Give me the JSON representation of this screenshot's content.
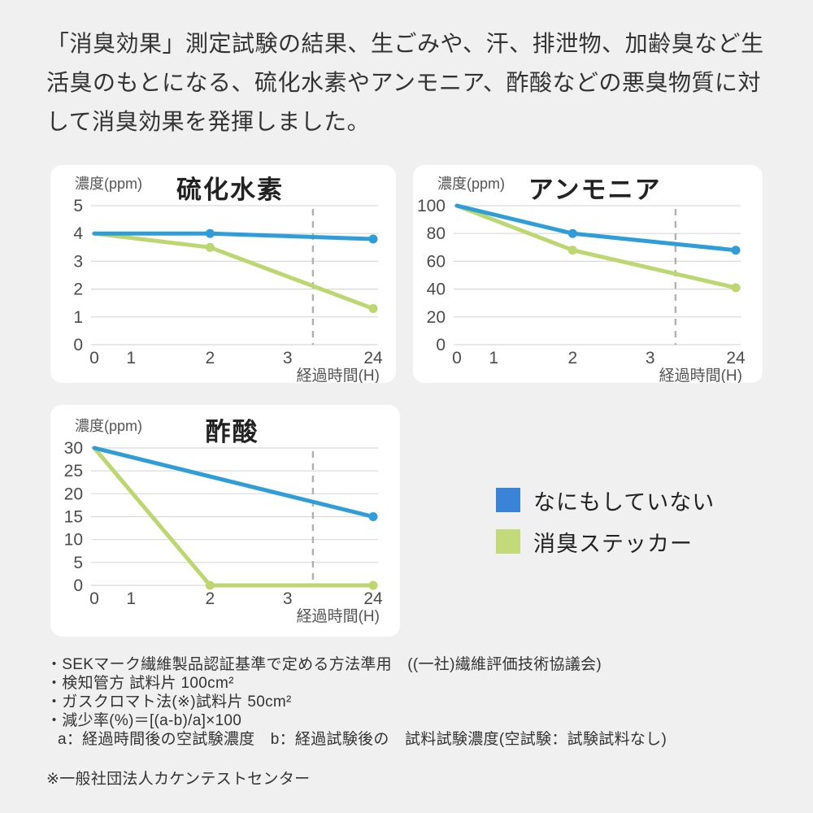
{
  "header": {
    "text": "「消臭効果」測定試験の結果、生ごみや、汗、排泄物、加齢臭など生活臭のもとになる、硫化水素やアンモニア、酢酸などの悪臭物質に対して消臭効果を発揮しました。"
  },
  "colors": {
    "blue": "#2f9ed8",
    "green": "#bcd770",
    "legend_blue": "#3a84d8",
    "legend_green": "#c3da7a",
    "grid": "#d9d9d9",
    "dashed": "#b0b0b0",
    "tick_text": "#4c4c4c",
    "label_text": "#555555",
    "title_text": "#222222",
    "card_bg": "#ffffff",
    "page_bg": "#f0f0f1"
  },
  "legend": {
    "items": [
      {
        "label": "なにもしていない",
        "color_key": "legend_blue",
        "swatch": "blue-square-icon"
      },
      {
        "label": "消臭ステッカー",
        "color_key": "legend_green",
        "swatch": "green-square-icon"
      }
    ]
  },
  "chart_data": [
    {
      "type": "line",
      "title": "硫化水素",
      "ylabel": "濃度(ppm)",
      "xlabel": "経過時間(H)",
      "x_ticks": [
        0,
        1,
        2,
        3,
        24
      ],
      "ylim": [
        0,
        5
      ],
      "yticks": [
        0,
        1,
        2,
        3,
        4,
        5
      ],
      "grid": "horizontal",
      "dashed_x_fraction": 0.784,
      "series": [
        {
          "name": "なにもしていない",
          "color": "blue",
          "x": [
            0,
            2,
            24
          ],
          "values": [
            4,
            4,
            3.8
          ]
        },
        {
          "name": "消臭ステッカー",
          "color": "green",
          "x": [
            0,
            2,
            24
          ],
          "values": [
            4,
            3.5,
            1.3
          ]
        }
      ]
    },
    {
      "type": "line",
      "title": "アンモニア",
      "ylabel": "濃度(ppm)",
      "xlabel": "経過時間(H)",
      "x_ticks": [
        0,
        1,
        2,
        3,
        24
      ],
      "ylim": [
        0,
        100
      ],
      "yticks": [
        0,
        20,
        40,
        60,
        80,
        100
      ],
      "grid": "horizontal",
      "dashed_x_fraction": 0.784,
      "series": [
        {
          "name": "なにもしていない",
          "color": "blue",
          "x": [
            0,
            2,
            24
          ],
          "values": [
            100,
            80,
            68
          ]
        },
        {
          "name": "消臭ステッカー",
          "color": "green",
          "x": [
            0,
            2,
            24
          ],
          "values": [
            100,
            68,
            41
          ]
        }
      ]
    },
    {
      "type": "line",
      "title": "酢酸",
      "ylabel": "濃度(ppm)",
      "xlabel": "経過時間(H)",
      "x_ticks": [
        0,
        1,
        2,
        3,
        24
      ],
      "ylim": [
        0,
        30
      ],
      "yticks": [
        0,
        5,
        10,
        15,
        20,
        25,
        30
      ],
      "grid": "horizontal",
      "dashed_x_fraction": 0.784,
      "series": [
        {
          "name": "なにもしていない",
          "color": "blue",
          "x": [
            0,
            24
          ],
          "values": [
            30,
            15
          ]
        },
        {
          "name": "消臭ステッカー",
          "color": "green",
          "x": [
            0,
            2,
            24
          ],
          "values": [
            30,
            0,
            0
          ]
        }
      ]
    }
  ],
  "footnotes": {
    "lines": [
      "・SEKマーク繊維製品認証基準で定める方法準用　((一社)繊維評価技術協議会)",
      "・検知管方 試料片 100cm²",
      "・ガスクロマト法(※)試料片 50cm²",
      "・減少率(%)＝[(a-b)/a]×100",
      "a：経過時間後の空試験濃度　b：経過試験後の　試料試験濃度(空試験：試験試料なし)",
      "※一般社団法人カケンテストセンター"
    ]
  }
}
